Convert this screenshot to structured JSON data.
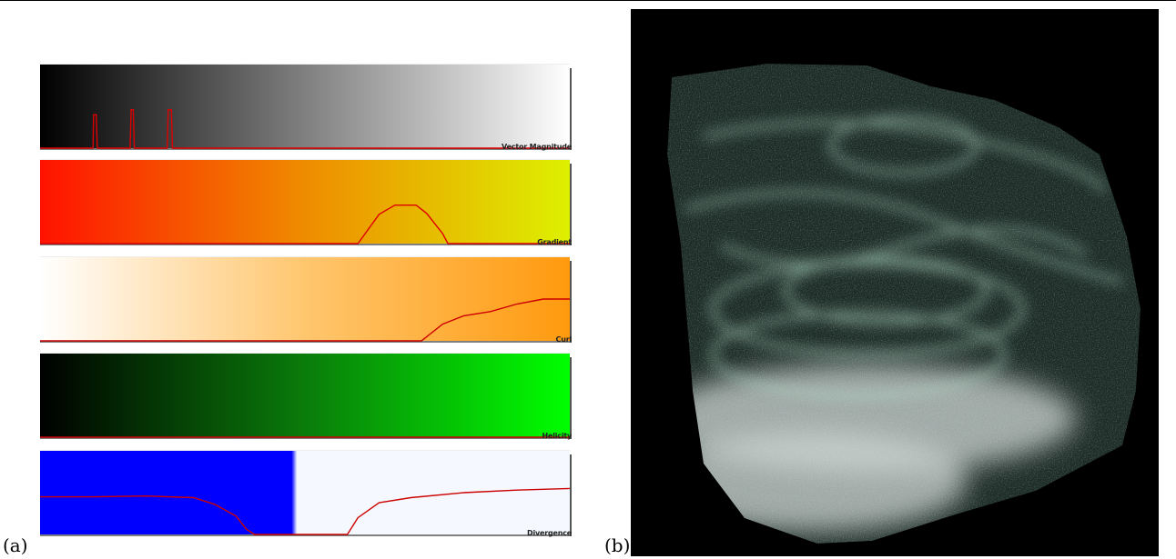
{
  "labels": {
    "left_panel": "(a)",
    "right_panel": "(b)"
  },
  "editors": [
    {
      "label": "Vector Magnitude",
      "gradient_colors": [
        "#000000",
        "#ffffff"
      ],
      "curve_color": "#dd0000",
      "curve": [
        [
          0,
          0
        ],
        [
          0.1,
          0
        ],
        [
          0.101,
          0.4
        ],
        [
          0.106,
          0.4
        ],
        [
          0.108,
          0
        ],
        [
          0.17,
          0
        ],
        [
          0.172,
          0.46
        ],
        [
          0.176,
          0.46
        ],
        [
          0.178,
          0
        ],
        [
          0.24,
          0
        ],
        [
          0.242,
          0.46
        ],
        [
          0.248,
          0.46
        ],
        [
          0.25,
          0
        ],
        [
          1,
          0
        ]
      ]
    },
    {
      "label": "Gradient",
      "gradient_colors": [
        "#ff1200",
        "#ef8c00",
        "#ddf000"
      ],
      "curve_color": "#dd0000",
      "curve": [
        [
          0,
          0
        ],
        [
          0.6,
          0
        ],
        [
          0.64,
          0.35
        ],
        [
          0.67,
          0.46
        ],
        [
          0.71,
          0.46
        ],
        [
          0.73,
          0.36
        ],
        [
          0.76,
          0.12
        ],
        [
          0.77,
          0
        ],
        [
          1,
          0
        ]
      ]
    },
    {
      "label": "Curl",
      "gradient_colors": [
        "#ffffff",
        "#ffc66e",
        "#ff9a0e"
      ],
      "curve_color": "#cc0000",
      "curve": [
        [
          0,
          0
        ],
        [
          0.72,
          0
        ],
        [
          0.76,
          0.2
        ],
        [
          0.8,
          0.3
        ],
        [
          0.85,
          0.35
        ],
        [
          0.9,
          0.44
        ],
        [
          0.95,
          0.5
        ],
        [
          1,
          0.5
        ]
      ]
    },
    {
      "label": "Helicity",
      "gradient_colors": [
        "#000000",
        "#0a7c0a",
        "#00ff00"
      ],
      "curve_color": "#cc0000",
      "curve": [
        [
          0,
          0
        ],
        [
          1,
          0
        ]
      ]
    },
    {
      "label": "Divergence",
      "gradient_colors": [
        "#0000ff",
        "#0000ff",
        "#f5f9ff",
        "#f5f9ff"
      ],
      "gradient_stops": [
        0,
        0.475,
        0.485,
        1
      ],
      "curve_color": "#cc0000",
      "curve": [
        [
          0,
          0.45
        ],
        [
          0.1,
          0.45
        ],
        [
          0.2,
          0.46
        ],
        [
          0.29,
          0.44
        ],
        [
          0.33,
          0.36
        ],
        [
          0.37,
          0.22
        ],
        [
          0.39,
          0.06
        ],
        [
          0.405,
          0
        ],
        [
          0.58,
          0
        ],
        [
          0.6,
          0.2
        ],
        [
          0.64,
          0.38
        ],
        [
          0.7,
          0.44
        ],
        [
          0.8,
          0.5
        ],
        [
          0.9,
          0.53
        ],
        [
          1,
          0.55
        ]
      ]
    }
  ],
  "render_colors": {
    "background": "#000000",
    "wisps": "#b4e2cc",
    "base_slab": "#cbd3d0"
  }
}
